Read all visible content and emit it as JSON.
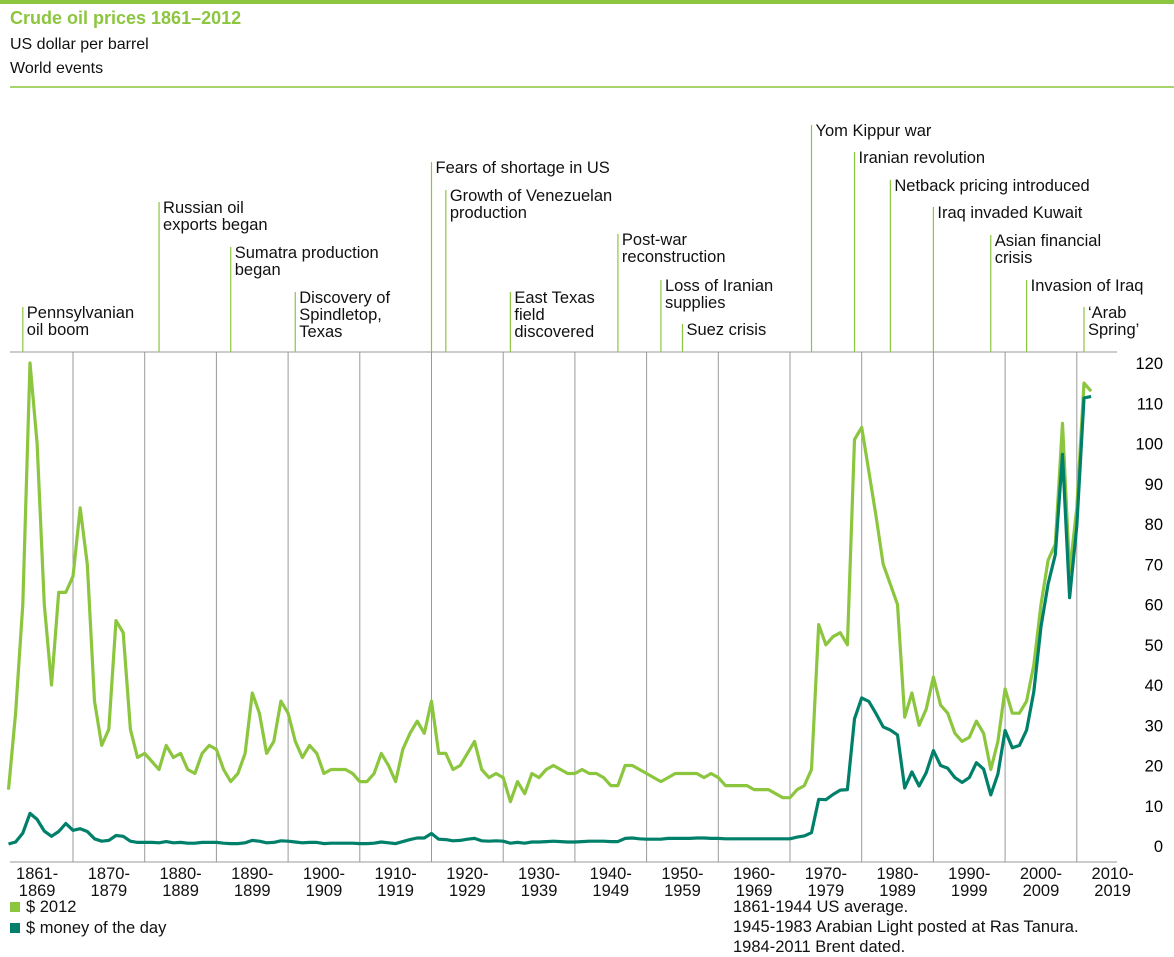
{
  "chart_data": {
    "type": "line",
    "title": "Crude oil prices 1861–2012",
    "subtitle": "US dollar per barrel",
    "events_title": "World events",
    "x": [
      1861,
      1862,
      1863,
      1864,
      1865,
      1866,
      1867,
      1868,
      1869,
      1870,
      1871,
      1872,
      1873,
      1874,
      1875,
      1876,
      1877,
      1878,
      1879,
      1880,
      1881,
      1882,
      1883,
      1884,
      1885,
      1886,
      1887,
      1888,
      1889,
      1890,
      1891,
      1892,
      1893,
      1894,
      1895,
      1896,
      1897,
      1898,
      1899,
      1900,
      1901,
      1902,
      1903,
      1904,
      1905,
      1906,
      1907,
      1908,
      1909,
      1910,
      1911,
      1912,
      1913,
      1914,
      1915,
      1916,
      1917,
      1918,
      1919,
      1920,
      1921,
      1922,
      1923,
      1924,
      1925,
      1926,
      1927,
      1928,
      1929,
      1930,
      1931,
      1932,
      1933,
      1934,
      1935,
      1936,
      1937,
      1938,
      1939,
      1940,
      1941,
      1942,
      1943,
      1944,
      1945,
      1946,
      1947,
      1948,
      1949,
      1950,
      1951,
      1952,
      1953,
      1954,
      1955,
      1956,
      1957,
      1958,
      1959,
      1960,
      1961,
      1962,
      1963,
      1964,
      1965,
      1966,
      1967,
      1968,
      1969,
      1970,
      1971,
      1972,
      1973,
      1974,
      1975,
      1976,
      1977,
      1978,
      1979,
      1980,
      1981,
      1982,
      1983,
      1984,
      1985,
      1986,
      1987,
      1988,
      1989,
      1990,
      1991,
      1992,
      1993,
      1994,
      1995,
      1996,
      1997,
      1998,
      1999,
      2000,
      2001,
      2002,
      2003,
      2004,
      2005,
      2006,
      2007,
      2008,
      2009,
      2010,
      2011,
      2012
    ],
    "series": [
      {
        "name": "$ 2012",
        "color": "#8cc63f",
        "values": [
          14,
          33,
          60,
          120,
          100,
          60,
          40,
          63,
          63,
          67,
          84,
          70,
          36,
          25,
          29,
          56,
          53,
          29,
          22,
          23,
          21,
          19,
          25,
          22,
          23,
          19,
          18,
          23,
          25,
          24,
          19,
          16,
          18,
          23,
          38,
          33,
          23,
          26,
          36,
          33,
          26,
          22,
          25,
          23,
          18,
          19,
          19,
          19,
          18,
          16,
          16,
          18,
          23,
          20,
          16,
          24,
          28,
          31,
          28,
          36,
          23,
          23,
          19,
          20,
          23,
          26,
          19,
          17,
          18,
          17,
          11,
          16,
          13,
          18,
          17,
          19,
          20,
          19,
          18,
          18,
          19,
          18,
          18,
          17,
          15,
          15,
          20,
          20,
          19,
          18,
          17,
          16,
          17,
          18,
          18,
          18,
          18,
          17,
          18,
          17,
          15,
          15,
          15,
          15,
          14,
          14,
          14,
          13,
          12,
          12,
          14,
          15,
          19,
          55,
          50,
          52,
          53,
          50,
          101,
          104,
          93,
          82,
          70,
          65,
          60,
          32,
          38,
          30,
          34,
          42,
          35,
          33,
          28,
          26,
          27,
          31,
          28,
          19,
          26,
          39,
          33,
          33,
          36,
          45,
          60,
          71,
          75,
          105,
          68,
          84,
          115,
          113
        ]
      },
      {
        "name": "$ money of the day",
        "color": "#00806a",
        "values": [
          0.5,
          1.0,
          3.2,
          8.1,
          6.6,
          3.7,
          2.4,
          3.6,
          5.6,
          3.9,
          4.3,
          3.6,
          1.8,
          1.2,
          1.4,
          2.6,
          2.4,
          1.2,
          0.9,
          0.9,
          0.9,
          0.8,
          1.1,
          0.8,
          0.9,
          0.7,
          0.7,
          0.9,
          0.9,
          0.9,
          0.7,
          0.6,
          0.6,
          0.8,
          1.4,
          1.2,
          0.8,
          0.9,
          1.3,
          1.2,
          1.0,
          0.8,
          0.9,
          0.9,
          0.6,
          0.7,
          0.7,
          0.7,
          0.7,
          0.6,
          0.6,
          0.7,
          1.0,
          0.8,
          0.6,
          1.1,
          1.6,
          2.0,
          2.0,
          3.1,
          1.7,
          1.6,
          1.3,
          1.4,
          1.7,
          1.9,
          1.3,
          1.2,
          1.3,
          1.2,
          0.7,
          0.9,
          0.7,
          1.0,
          1.0,
          1.1,
          1.2,
          1.1,
          1.0,
          1.0,
          1.1,
          1.2,
          1.2,
          1.2,
          1.1,
          1.1,
          1.9,
          2.0,
          1.8,
          1.7,
          1.7,
          1.7,
          1.9,
          1.9,
          1.9,
          1.9,
          2.0,
          2.0,
          1.9,
          1.9,
          1.8,
          1.8,
          1.8,
          1.8,
          1.8,
          1.8,
          1.8,
          1.8,
          1.8,
          1.8,
          2.2,
          2.5,
          3.3,
          11.6,
          11.5,
          12.8,
          13.9,
          14.0,
          31.6,
          36.8,
          35.9,
          32.9,
          29.6,
          28.8,
          27.6,
          14.4,
          18.4,
          14.9,
          18.2,
          23.7,
          20.0,
          19.3,
          17.0,
          15.8,
          17.0,
          20.7,
          19.1,
          12.7,
          17.9,
          28.7,
          24.4,
          25.0,
          28.8,
          38.3,
          54.5,
          65.1,
          72.4,
          97.3,
          61.7,
          79.5,
          111.3,
          111.7
        ]
      }
    ],
    "xlim": [
      1860,
      2020
    ],
    "xticks": [
      1870,
      1880,
      1890,
      1900,
      1910,
      1920,
      1930,
      1940,
      1950,
      1960,
      1970,
      1980,
      1990,
      2000,
      2010
    ],
    "decades": [
      "1861-1869",
      "1870-1879",
      "1880-1889",
      "1890-1899",
      "1900-1909",
      "1910-1919",
      "1920-1929",
      "1930-1939",
      "1940-1949",
      "1950-1959",
      "1960-1969",
      "1970-1979",
      "1980-1989",
      "1990-1999",
      "2000-2009",
      "2010-2019"
    ],
    "ylim": [
      0,
      120
    ],
    "yticks": [
      0,
      10,
      20,
      30,
      40,
      50,
      60,
      70,
      80,
      90,
      100,
      110,
      120
    ],
    "events": [
      {
        "year": 1863,
        "text": "Pennsylvanian\noil boom"
      },
      {
        "year": 1882,
        "text": "Russian oil\nexports began"
      },
      {
        "year": 1892,
        "text": "Sumatra production\nbegan"
      },
      {
        "year": 1901,
        "text": "Discovery of\nSpindletop,\nTexas"
      },
      {
        "year": 1920,
        "text": "Fears of shortage in US"
      },
      {
        "year": 1922,
        "text": "Growth of Venezuelan\nproduction"
      },
      {
        "year": 1931,
        "text": "East Texas\nfield\ndiscovered"
      },
      {
        "year": 1946,
        "text": "Post-war\nreconstruction"
      },
      {
        "year": 1952,
        "text": "Loss of Iranian\nsupplies"
      },
      {
        "year": 1955,
        "text": "Suez crisis"
      },
      {
        "year": 1973,
        "text": "Yom Kippur war"
      },
      {
        "year": 1979,
        "text": "Iranian revolution"
      },
      {
        "year": 1984,
        "text": "Netback pricing introduced"
      },
      {
        "year": 1990,
        "text": "Iraq invaded Kuwait"
      },
      {
        "year": 1998,
        "text": "Asian financial\ncrisis"
      },
      {
        "year": 2003,
        "text": "Invasion of Iraq"
      },
      {
        "year": 2011,
        "text": "‘Arab\nSpring’"
      }
    ],
    "notes": [
      "1861-1944 US average.",
      "1945-1983 Arabian Light posted at Ras Tanura.",
      "1984-2011 Brent dated."
    ]
  }
}
